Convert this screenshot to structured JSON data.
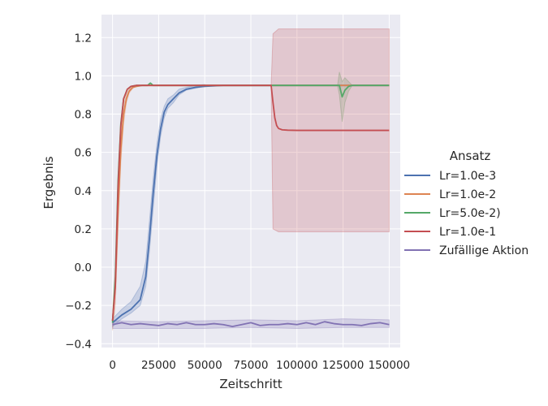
{
  "chart_data": {
    "type": "line",
    "xlabel": "Zeitschritt",
    "ylabel": "Ergebnis",
    "xlim": [
      -6000,
      156000
    ],
    "ylim": [
      -0.42,
      1.32
    ],
    "xticks": [
      0,
      25000,
      50000,
      75000,
      100000,
      125000,
      150000
    ],
    "xtick_labels": [
      "0",
      "25000",
      "50000",
      "75000",
      "100000",
      "125000",
      "150000"
    ],
    "yticks": [
      -0.4,
      -0.2,
      0.0,
      0.2,
      0.4,
      0.6,
      0.8,
      1.0,
      1.2
    ],
    "ytick_labels": [
      "−0.4",
      "−0.2",
      "0.0",
      "0.2",
      "0.4",
      "0.6",
      "0.8",
      "1.0",
      "1.2"
    ],
    "grid": true,
    "legend": {
      "title": "Ansatz",
      "placement": "right"
    },
    "series": [
      {
        "name": "Lr=1.0e-3",
        "color": "#4c72b0",
        "x": [
          0,
          5000,
          10000,
          15000,
          18000,
          20000,
          22000,
          24000,
          26000,
          28000,
          30000,
          33000,
          36000,
          40000,
          45000,
          50000,
          60000,
          70000,
          80000,
          90000,
          100000,
          120000,
          150000
        ],
        "y": [
          -0.29,
          -0.25,
          -0.22,
          -0.17,
          -0.05,
          0.15,
          0.38,
          0.58,
          0.72,
          0.81,
          0.85,
          0.88,
          0.91,
          0.93,
          0.94,
          0.945,
          0.95,
          0.95,
          0.95,
          0.95,
          0.95,
          0.95,
          0.95
        ],
        "band_x": [
          0,
          5000,
          10000,
          15000,
          18000,
          20000,
          22000,
          24000,
          26000,
          28000,
          30000,
          33000,
          36000,
          40000,
          45000,
          50000
        ],
        "band_low": [
          -0.31,
          -0.27,
          -0.24,
          -0.2,
          -0.1,
          0.08,
          0.3,
          0.52,
          0.68,
          0.78,
          0.83,
          0.86,
          0.9,
          0.925,
          0.935,
          0.945
        ],
        "band_high": [
          -0.27,
          -0.22,
          -0.18,
          -0.1,
          0.03,
          0.24,
          0.46,
          0.64,
          0.77,
          0.84,
          0.88,
          0.9,
          0.93,
          0.94,
          0.95,
          0.955
        ]
      },
      {
        "name": "Lr=1.0e-2",
        "color": "#dd8452",
        "x": [
          0,
          1500,
          3000,
          4500,
          6000,
          7500,
          9000,
          11000,
          13000,
          16000,
          20000,
          150000
        ],
        "y": [
          -0.28,
          -0.1,
          0.3,
          0.62,
          0.8,
          0.88,
          0.92,
          0.94,
          0.945,
          0.95,
          0.95,
          0.95
        ],
        "band_x": [
          0,
          1500,
          3000,
          4500,
          6000,
          7500,
          9000,
          11000,
          13000,
          16000
        ],
        "band_low": [
          -0.33,
          -0.2,
          0.2,
          0.55,
          0.75,
          0.86,
          0.91,
          0.935,
          0.945,
          0.95
        ],
        "band_high": [
          -0.24,
          0.0,
          0.4,
          0.68,
          0.85,
          0.9,
          0.93,
          0.945,
          0.95,
          0.95
        ]
      },
      {
        "name": "Lr=5.0e-2)",
        "color": "#55a868",
        "x": [
          0,
          1500,
          3000,
          4500,
          6000,
          8000,
          10000,
          13000,
          16000,
          19000,
          20500,
          22000,
          30000,
          60000,
          90000,
          100000,
          110000,
          120000,
          123000,
          124500,
          126000,
          128000,
          130000,
          135000,
          150000
        ],
        "y": [
          -0.29,
          -0.05,
          0.45,
          0.75,
          0.88,
          0.93,
          0.945,
          0.95,
          0.95,
          0.95,
          0.962,
          0.95,
          0.95,
          0.95,
          0.95,
          0.95,
          0.95,
          0.95,
          0.95,
          0.89,
          0.925,
          0.945,
          0.95,
          0.95,
          0.95
        ],
        "band_x": [
          122000,
          123000,
          124500,
          126000,
          128000,
          130000
        ],
        "band_low": [
          0.95,
          0.9,
          0.76,
          0.86,
          0.92,
          0.95
        ],
        "band_high": [
          0.95,
          1.02,
          0.97,
          0.99,
          0.97,
          0.95
        ]
      },
      {
        "name": "Lr=1.0e-1",
        "color": "#c44e52",
        "x": [
          0,
          1500,
          3000,
          4500,
          6000,
          8000,
          10000,
          13000,
          20000,
          40000,
          60000,
          80000,
          86000,
          87000,
          88000,
          89000,
          90000,
          92000,
          95000,
          100000,
          120000,
          150000
        ],
        "y": [
          -0.28,
          -0.1,
          0.42,
          0.74,
          0.88,
          0.93,
          0.945,
          0.95,
          0.95,
          0.95,
          0.95,
          0.95,
          0.95,
          0.86,
          0.78,
          0.74,
          0.725,
          0.718,
          0.716,
          0.715,
          0.715,
          0.715
        ],
        "band_x": [
          86000,
          87000,
          90000,
          100000,
          150000
        ],
        "band_low": [
          0.95,
          0.2,
          0.185,
          0.185,
          0.185
        ],
        "band_high": [
          0.95,
          1.22,
          1.245,
          1.245,
          1.245
        ]
      },
      {
        "name": "Zufällige Aktion",
        "color": "#8172b3",
        "x": [
          0,
          5000,
          10000,
          15000,
          20000,
          25000,
          30000,
          35000,
          40000,
          45000,
          50000,
          55000,
          60000,
          65000,
          70000,
          75000,
          80000,
          85000,
          90000,
          95000,
          100000,
          105000,
          110000,
          115000,
          120000,
          125000,
          130000,
          135000,
          140000,
          145000,
          150000
        ],
        "y": [
          -0.3,
          -0.29,
          -0.3,
          -0.295,
          -0.3,
          -0.305,
          -0.295,
          -0.3,
          -0.29,
          -0.3,
          -0.3,
          -0.295,
          -0.3,
          -0.31,
          -0.3,
          -0.29,
          -0.305,
          -0.3,
          -0.3,
          -0.295,
          -0.3,
          -0.29,
          -0.3,
          -0.285,
          -0.295,
          -0.3,
          -0.3,
          -0.305,
          -0.295,
          -0.29,
          -0.3
        ],
        "band_x": [
          0,
          25000,
          50000,
          75000,
          100000,
          125000,
          150000
        ],
        "band_low": [
          -0.32,
          -0.32,
          -0.32,
          -0.315,
          -0.32,
          -0.315,
          -0.315
        ],
        "band_high": [
          -0.28,
          -0.285,
          -0.28,
          -0.275,
          -0.28,
          -0.27,
          -0.275
        ]
      }
    ]
  }
}
